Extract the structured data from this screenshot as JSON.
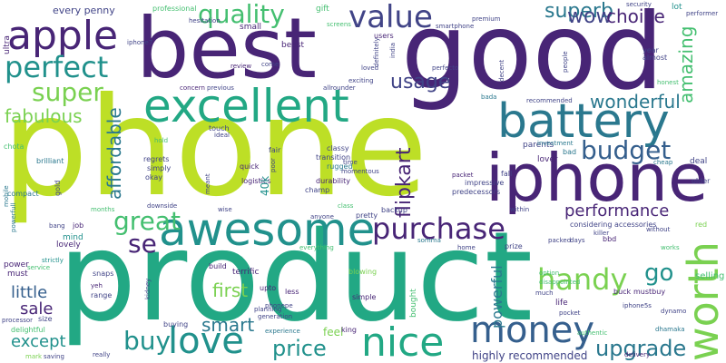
{
  "palette": {
    "dark_purple": "#482576",
    "indigo": "#414487",
    "blue": "#355f8d",
    "teal_blue": "#2a788e",
    "teal": "#21918c",
    "green_teal": "#22a884",
    "green": "#44bf70",
    "light_green": "#7ad151",
    "lime": "#bddf26",
    "yellow": "#fde725"
  },
  "words": [
    {
      "text": "phone",
      "color": "#bddf26"
    },
    {
      "text": "product",
      "color": "#22a884"
    },
    {
      "text": "good",
      "color": "#482576"
    },
    {
      "text": "best",
      "color": "#482576"
    },
    {
      "text": "iphone",
      "color": "#482576"
    },
    {
      "text": "awesome",
      "color": "#21918c"
    },
    {
      "text": "excellent",
      "color": "#22a884"
    },
    {
      "text": "battery",
      "color": "#2a788e"
    },
    {
      "text": "apple",
      "color": "#482576"
    },
    {
      "text": "worth",
      "color": "#7ad151"
    },
    {
      "text": "nice",
      "color": "#22a884"
    },
    {
      "text": "money",
      "color": "#355f8d"
    },
    {
      "text": "love",
      "color": "#21918c"
    },
    {
      "text": "value",
      "color": "#414487"
    },
    {
      "text": "perfect",
      "color": "#21918c"
    },
    {
      "text": "purchase",
      "color": "#482576"
    },
    {
      "text": "quality",
      "color": "#44bf70"
    },
    {
      "text": "great",
      "color": "#44bf70"
    },
    {
      "text": "handy",
      "color": "#7ad151"
    },
    {
      "text": "budget",
      "color": "#355f8d"
    },
    {
      "text": "super",
      "color": "#7ad151"
    },
    {
      "text": "buy",
      "color": "#21918c"
    },
    {
      "text": "price",
      "color": "#21918c"
    },
    {
      "text": "upgrade",
      "color": "#2a788e"
    },
    {
      "text": "se",
      "color": "#482576"
    },
    {
      "text": "go",
      "color": "#21918c"
    },
    {
      "text": "usage",
      "color": "#414487"
    },
    {
      "text": "superb",
      "color": "#2a788e"
    },
    {
      "text": "wow",
      "color": "#414487"
    },
    {
      "text": "choice",
      "color": "#482576"
    },
    {
      "text": "wonderful",
      "color": "#2a788e"
    },
    {
      "text": "performance",
      "color": "#482576"
    },
    {
      "text": "amazing",
      "color": "#44bf70"
    },
    {
      "text": "fabulous",
      "color": "#7ad151"
    },
    {
      "text": "affordable",
      "color": "#2a788e"
    },
    {
      "text": "flipkart",
      "color": "#482576"
    },
    {
      "text": "first",
      "color": "#7ad151"
    },
    {
      "text": "smart",
      "color": "#2a788e"
    },
    {
      "text": "little",
      "color": "#355f8d"
    },
    {
      "text": "sale",
      "color": "#482576"
    },
    {
      "text": "except",
      "color": "#21918c"
    },
    {
      "text": "powerful",
      "color": "#2a788e"
    },
    {
      "text": "highly recommended",
      "color": "#414487"
    },
    {
      "text": "selling",
      "color": "#44bf70"
    },
    {
      "text": "every penny",
      "color": "#414487"
    },
    {
      "text": "professional",
      "color": "#44bf70"
    },
    {
      "text": "small",
      "color": "#482576"
    },
    {
      "text": "beast",
      "color": "#482576"
    },
    {
      "text": "gift",
      "color": "#44bf70"
    },
    {
      "text": "users",
      "color": "#482576"
    },
    {
      "text": "premium",
      "color": "#414487"
    },
    {
      "text": "security",
      "color": "#414487"
    },
    {
      "text": "performer",
      "color": "#414487"
    },
    {
      "text": "lot",
      "color": "#21918c"
    },
    {
      "text": "ultra",
      "color": "#482576"
    },
    {
      "text": "compact",
      "color": "#2a788e"
    },
    {
      "text": "brilliant",
      "color": "#2a788e"
    },
    {
      "text": "classy",
      "color": "#414487"
    },
    {
      "text": "transition",
      "color": "#414487"
    },
    {
      "text": "rugged",
      "color": "#2a788e"
    },
    {
      "text": "durability",
      "color": "#482576"
    },
    {
      "text": "champ",
      "color": "#414487"
    },
    {
      "text": "logistics",
      "color": "#482576"
    },
    {
      "text": "quick",
      "color": "#482576"
    },
    {
      "text": "regrets",
      "color": "#414487"
    },
    {
      "text": "simply",
      "color": "#414487"
    },
    {
      "text": "okay",
      "color": "#414487"
    },
    {
      "text": "impressive",
      "color": "#414487"
    },
    {
      "text": "predecessors",
      "color": "#414487"
    },
    {
      "text": "lover",
      "color": "#482576"
    },
    {
      "text": "parents",
      "color": "#414487"
    },
    {
      "text": "investment",
      "color": "#2a788e"
    },
    {
      "text": "recommended",
      "color": "#414487"
    },
    {
      "text": "deal",
      "color": "#414487"
    },
    {
      "text": "cheap",
      "color": "#2a788e"
    },
    {
      "text": "honest",
      "color": "#44bf70"
    },
    {
      "text": "older",
      "color": "#414487"
    },
    {
      "text": "bada",
      "color": "#2a788e"
    },
    {
      "text": "packet",
      "color": "#482576"
    },
    {
      "text": "backup",
      "color": "#414487"
    },
    {
      "text": "considering accessories",
      "color": "#414487"
    },
    {
      "text": "within",
      "color": "#414487"
    },
    {
      "text": "pretty",
      "color": "#414487"
    },
    {
      "text": "anyone",
      "color": "#414487"
    },
    {
      "text": "mind",
      "color": "#21918c"
    },
    {
      "text": "lovely",
      "color": "#482576"
    },
    {
      "text": "must",
      "color": "#482576"
    },
    {
      "text": "power",
      "color": "#482576"
    },
    {
      "text": "service",
      "color": "#44bf70"
    },
    {
      "text": "bang",
      "color": "#414487"
    },
    {
      "text": "job",
      "color": "#482576"
    },
    {
      "text": "strictly",
      "color": "#21918c"
    },
    {
      "text": "terrific",
      "color": "#482576"
    },
    {
      "text": "range",
      "color": "#414487"
    },
    {
      "text": "blowing",
      "color": "#7ad151"
    },
    {
      "text": "simple",
      "color": "#482576"
    },
    {
      "text": "bought",
      "color": "#44bf70"
    },
    {
      "text": "size",
      "color": "#414487"
    },
    {
      "text": "processor",
      "color": "#414487"
    },
    {
      "text": "buying",
      "color": "#414487"
    },
    {
      "text": "generation",
      "color": "#414487"
    },
    {
      "text": "phonepe",
      "color": "#414487"
    },
    {
      "text": "experience",
      "color": "#2a788e"
    },
    {
      "text": "feel",
      "color": "#7ad151"
    },
    {
      "text": "king",
      "color": "#482576"
    },
    {
      "text": "planning",
      "color": "#414487"
    },
    {
      "text": "really",
      "color": "#414487"
    },
    {
      "text": "saving",
      "color": "#414487"
    },
    {
      "text": "mark",
      "color": "#7ad151"
    },
    {
      "text": "delightful",
      "color": "#44bf70"
    },
    {
      "text": "upto",
      "color": "#482576"
    },
    {
      "text": "less",
      "color": "#482576"
    },
    {
      "text": "build",
      "color": "#482576"
    },
    {
      "text": "snaps",
      "color": "#414487"
    },
    {
      "text": "yeh",
      "color": "#482576"
    },
    {
      "text": "prize",
      "color": "#414487"
    },
    {
      "text": "home",
      "color": "#414487"
    },
    {
      "text": "option",
      "color": "#44bf70"
    },
    {
      "text": "days",
      "color": "#414487"
    },
    {
      "text": "works",
      "color": "#44bf70"
    },
    {
      "text": "buck",
      "color": "#482576"
    },
    {
      "text": "mustbuy",
      "color": "#482576"
    },
    {
      "text": "dynamo",
      "color": "#414487"
    },
    {
      "text": "pocket",
      "color": "#414487"
    },
    {
      "text": "life",
      "color": "#482576"
    },
    {
      "text": "dhamaka",
      "color": "#2a788e"
    },
    {
      "text": "delivery",
      "color": "#482576"
    },
    {
      "text": "authentic",
      "color": "#44bf70"
    },
    {
      "text": "much",
      "color": "#414487"
    },
    {
      "text": "iphone5s",
      "color": "#414487"
    },
    {
      "text": "bbd",
      "color": "#482576"
    },
    {
      "text": "red",
      "color": "#7ad151"
    },
    {
      "text": "year",
      "color": "#414487"
    },
    {
      "text": "almost",
      "color": "#414487"
    },
    {
      "text": "touch",
      "color": "#414487"
    },
    {
      "text": "fair",
      "color": "#414487"
    },
    {
      "text": "poor",
      "color": "#414487"
    },
    {
      "text": "hold",
      "color": "#44bf70"
    },
    {
      "text": "ideal",
      "color": "#414487"
    },
    {
      "text": "review",
      "color": "#482576"
    },
    {
      "text": "come",
      "color": "#414487"
    },
    {
      "text": "concern",
      "color": "#482576"
    },
    {
      "text": "previous",
      "color": "#414487"
    },
    {
      "text": "allrounder",
      "color": "#414487"
    },
    {
      "text": "hesitation",
      "color": "#414487"
    },
    {
      "text": "iphone7",
      "color": "#414487"
    },
    {
      "text": "smartphone",
      "color": "#414487"
    },
    {
      "text": "india",
      "color": "#414487"
    },
    {
      "text": "exciting",
      "color": "#414487"
    },
    {
      "text": "time",
      "color": "#414487"
    },
    {
      "text": "momentous",
      "color": "#414487"
    },
    {
      "text": "meant",
      "color": "#414487"
    },
    {
      "text": "40k",
      "color": "#21918c"
    },
    {
      "text": "chota",
      "color": "#44bf70"
    },
    {
      "text": "gold",
      "color": "#414487"
    },
    {
      "text": "months",
      "color": "#44bf70"
    },
    {
      "text": "powerfull",
      "color": "#2a788e"
    },
    {
      "text": "kidney",
      "color": "#414487"
    },
    {
      "text": "downside",
      "color": "#414487"
    },
    {
      "text": "wise",
      "color": "#414487"
    },
    {
      "text": "class",
      "color": "#44bf70"
    },
    {
      "text": "everything",
      "color": "#44bf70"
    },
    {
      "text": "bad",
      "color": "#2a788e"
    },
    {
      "text": "fall",
      "color": "#414487"
    },
    {
      "text": "packed",
      "color": "#414487"
    },
    {
      "text": "somma",
      "color": "#2a788e"
    },
    {
      "text": "killer",
      "color": "#414487"
    },
    {
      "text": "without",
      "color": "#414487"
    },
    {
      "text": "disappointed",
      "color": "#44bf70"
    },
    {
      "text": "mobile",
      "color": "#2a788e"
    },
    {
      "text": "loved",
      "color": "#414487"
    },
    {
      "text": "perfecto",
      "color": "#414487"
    },
    {
      "text": "decent",
      "color": "#414487"
    },
    {
      "text": "people",
      "color": "#414487"
    },
    {
      "text": "screens",
      "color": "#44bf70"
    },
    {
      "text": "definitely",
      "color": "#414487"
    }
  ]
}
